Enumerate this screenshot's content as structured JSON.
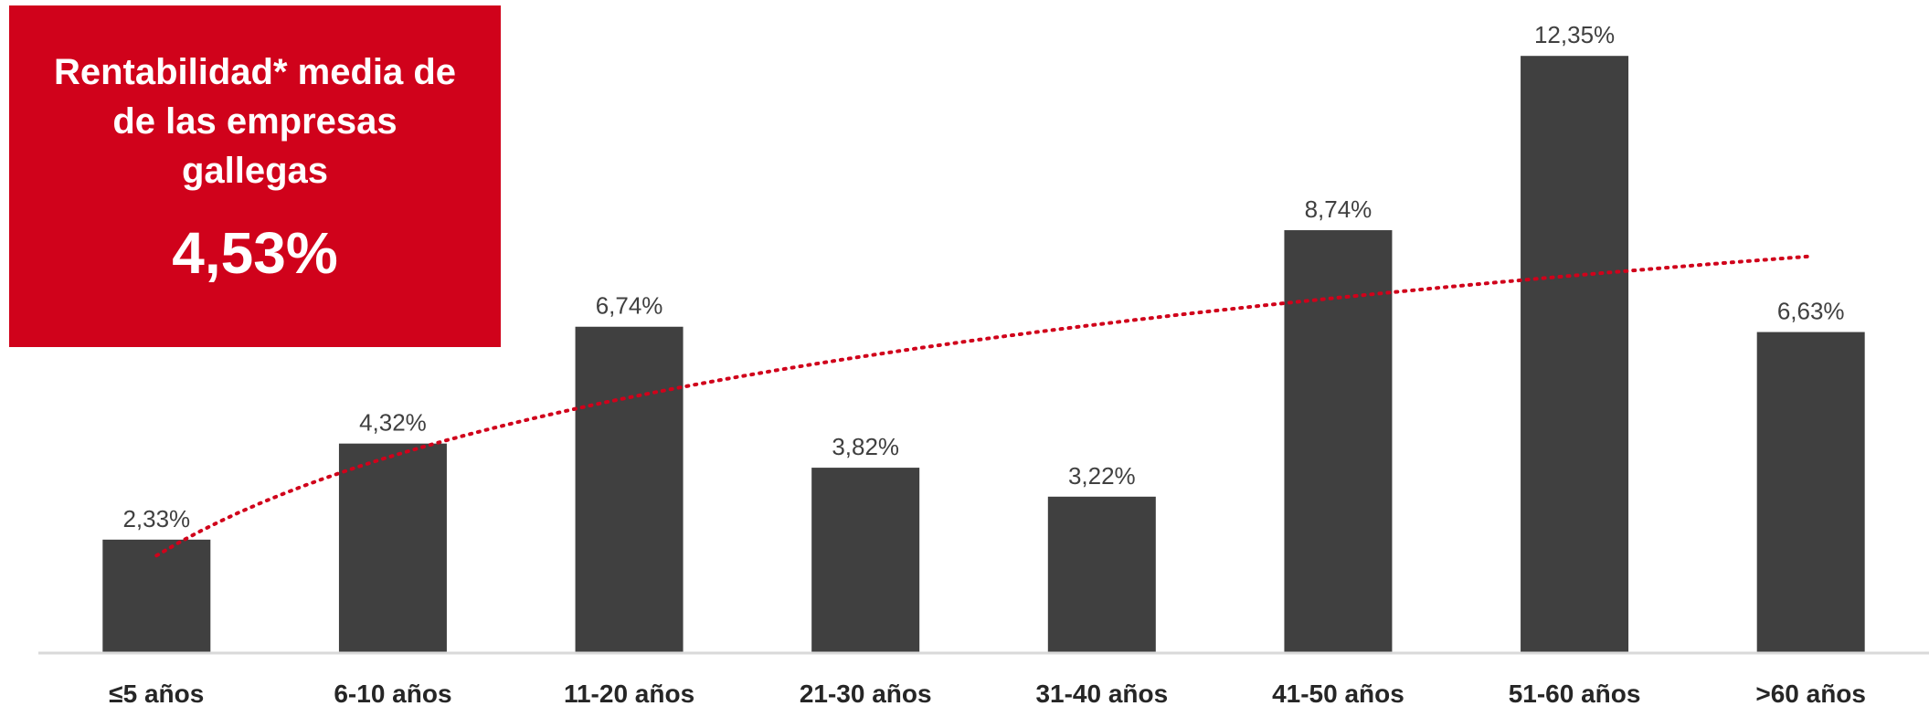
{
  "summary": {
    "title": "Rentabilidad* media de de las empresas gallegas",
    "value": "4,53%"
  },
  "colors": {
    "bar": "#404040",
    "trend": "#d0021b",
    "box": "#d0021b",
    "axis": "#d9d9d9"
  },
  "chart_data": {
    "type": "bar",
    "categories": [
      "≤5 años",
      "6-10 años",
      "11-20 años",
      "21-30 años",
      "31-40 años",
      "41-50 años",
      "51-60 años",
      ">60 años"
    ],
    "values": [
      2.33,
      4.32,
      6.74,
      3.82,
      3.22,
      8.74,
      12.35,
      6.63
    ],
    "value_labels": [
      "2,33%",
      "4,32%",
      "6,74%",
      "3,82%",
      "3,22%",
      "8,74%",
      "12,35%",
      "6,63%"
    ],
    "ylim": [
      0,
      12.6
    ],
    "grid": false,
    "legend": "none",
    "trendline": {
      "type": "logarithmic",
      "style": "dotted",
      "start_value": 2.0,
      "end_value": 8.2
    }
  }
}
